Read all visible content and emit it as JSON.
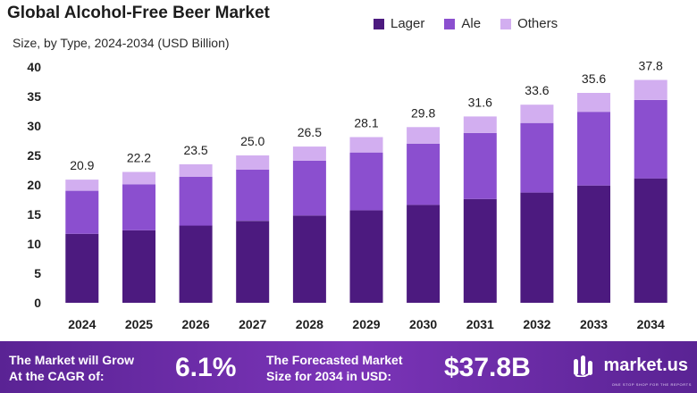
{
  "header": {
    "title": "Global Alcohol-Free Beer Market",
    "subtitle": "Size, by Type, 2024-2034 (USD Billion)"
  },
  "legend": [
    {
      "label": "Lager",
      "color": "#4c1a7f"
    },
    {
      "label": "Ale",
      "color": "#8b4fcf"
    },
    {
      "label": "Others",
      "color": "#d2aef0"
    }
  ],
  "chart_data": {
    "type": "bar",
    "stacked": true,
    "title": "Global Alcohol-Free Beer Market",
    "subtitle": "Size, by Type, 2024-2034 (USD Billion)",
    "xlabel": "",
    "ylabel": "",
    "ylim": [
      0,
      40
    ],
    "yticks": [
      0,
      5,
      10,
      15,
      20,
      25,
      30,
      35,
      40
    ],
    "legend_position": "top-right",
    "categories": [
      "2024",
      "2025",
      "2026",
      "2027",
      "2028",
      "2029",
      "2030",
      "2031",
      "2032",
      "2033",
      "2034"
    ],
    "series": [
      {
        "name": "Lager",
        "color": "#4c1a7f",
        "values": [
          11.7,
          12.3,
          13.1,
          13.9,
          14.8,
          15.7,
          16.6,
          17.6,
          18.7,
          19.9,
          21.1
        ]
      },
      {
        "name": "Ale",
        "color": "#8b4fcf",
        "values": [
          7.3,
          7.8,
          8.3,
          8.7,
          9.3,
          9.8,
          10.4,
          11.2,
          11.8,
          12.5,
          13.3
        ]
      },
      {
        "name": "Others",
        "color": "#d2aef0",
        "values": [
          1.9,
          2.1,
          2.1,
          2.4,
          2.4,
          2.6,
          2.8,
          2.8,
          3.1,
          3.2,
          3.4
        ]
      }
    ],
    "totals": [
      20.9,
      22.2,
      23.5,
      25.0,
      26.5,
      28.1,
      29.8,
      31.6,
      33.6,
      35.6,
      37.8
    ],
    "total_labels": [
      "20.9",
      "22.2",
      "23.5",
      "25.0",
      "26.5",
      "28.1",
      "29.8",
      "31.6",
      "33.6",
      "35.6",
      "37.8"
    ]
  },
  "banner": {
    "cagr_text_line1": "The Market will Grow",
    "cagr_text_line2": "At the CAGR of:",
    "cagr_value": "6.1%",
    "forecast_text_line1": "The Forecasted Market",
    "forecast_text_line2": "Size for 2034 in USD:",
    "forecast_value": "$37.8B",
    "brand_name": "market.us",
    "brand_tagline": "ONE STOP SHOP FOR THE REPORTS"
  }
}
